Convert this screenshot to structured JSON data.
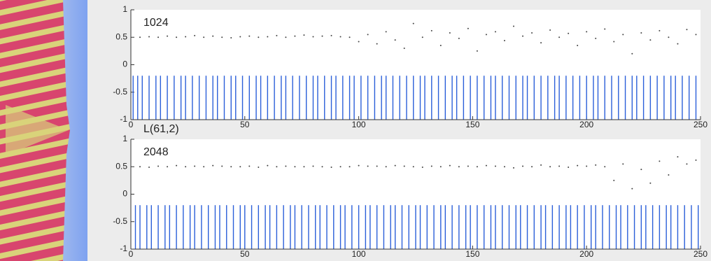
{
  "chart_data": [
    {
      "type": "scatter",
      "label": "1024",
      "annotation": "L(61,2)",
      "x": [
        4,
        8,
        12,
        16,
        20,
        24,
        28,
        32,
        36,
        40,
        44,
        48,
        52,
        56,
        60,
        64,
        68,
        72,
        76,
        80,
        84,
        88,
        92,
        96,
        100,
        104,
        108,
        112,
        116,
        120,
        124,
        128,
        132,
        136,
        140,
        144,
        148,
        152,
        156,
        160,
        164,
        168,
        172,
        176,
        180,
        184,
        188,
        192,
        196,
        200,
        204,
        208,
        212,
        216,
        220,
        224,
        228,
        232,
        236,
        240,
        244,
        248
      ],
      "values": [
        0.5,
        0.51,
        0.5,
        0.52,
        0.5,
        0.51,
        0.53,
        0.5,
        0.52,
        0.5,
        0.49,
        0.51,
        0.52,
        0.5,
        0.51,
        0.53,
        0.5,
        0.52,
        0.54,
        0.51,
        0.52,
        0.53,
        0.51,
        0.5,
        0.42,
        0.55,
        0.38,
        0.6,
        0.45,
        0.3,
        0.75,
        0.5,
        0.62,
        0.35,
        0.58,
        0.48,
        0.66,
        0.25,
        0.55,
        0.6,
        0.44,
        0.7,
        0.52,
        0.58,
        0.4,
        0.63,
        0.5,
        0.57,
        0.35,
        0.6,
        0.48,
        0.65,
        0.42,
        0.55,
        0.2,
        0.58,
        0.45,
        0.62,
        0.5,
        0.38,
        0.64,
        0.55
      ],
      "color": "#444444",
      "events": {
        "x": [
          1,
          3,
          5,
          8,
          11,
          13,
          16,
          19,
          22,
          24,
          27,
          30,
          33,
          36,
          38,
          41,
          44,
          46,
          49,
          52,
          55,
          57,
          60,
          63,
          66,
          68,
          71,
          74,
          77,
          80,
          82,
          85,
          88,
          90,
          93,
          96,
          98,
          101,
          104,
          107,
          110,
          112,
          115,
          118,
          121,
          124,
          127,
          129,
          132,
          135,
          138,
          141,
          143,
          146,
          149,
          152,
          155,
          158,
          160,
          163,
          166,
          169,
          172,
          174,
          177,
          180,
          183,
          186,
          188,
          191,
          194,
          197,
          200,
          203,
          205,
          208,
          211,
          214,
          217,
          220,
          222,
          225,
          228,
          231,
          234,
          237,
          239,
          242,
          245,
          248
        ],
        "top": -0.2,
        "color": "#2b5fd9"
      },
      "xlim": [
        0,
        250
      ],
      "ylim": [
        -1,
        1
      ],
      "xticks": [
        0,
        50,
        100,
        150,
        200,
        250
      ],
      "yticks": [
        1,
        0.5,
        0,
        -0.5,
        -1
      ]
    },
    {
      "type": "scatter",
      "label": "2048",
      "x": [
        4,
        8,
        12,
        16,
        20,
        24,
        28,
        32,
        36,
        40,
        44,
        48,
        52,
        56,
        60,
        64,
        68,
        72,
        76,
        80,
        84,
        88,
        92,
        96,
        100,
        104,
        108,
        112,
        116,
        120,
        124,
        128,
        132,
        136,
        140,
        144,
        148,
        152,
        156,
        160,
        164,
        168,
        172,
        176,
        180,
        184,
        188,
        192,
        196,
        200,
        204,
        208,
        212,
        216,
        220,
        224,
        228,
        232,
        236,
        240,
        244,
        248
      ],
      "values": [
        0.5,
        0.49,
        0.51,
        0.5,
        0.52,
        0.5,
        0.51,
        0.5,
        0.52,
        0.51,
        0.5,
        0.5,
        0.51,
        0.49,
        0.52,
        0.5,
        0.51,
        0.5,
        0.5,
        0.51,
        0.5,
        0.49,
        0.5,
        0.5,
        0.52,
        0.51,
        0.51,
        0.5,
        0.52,
        0.51,
        0.5,
        0.49,
        0.51,
        0.5,
        0.52,
        0.5,
        0.51,
        0.5,
        0.52,
        0.51,
        0.5,
        0.48,
        0.51,
        0.5,
        0.53,
        0.5,
        0.51,
        0.49,
        0.52,
        0.51,
        0.53,
        0.5,
        0.25,
        0.55,
        0.1,
        0.45,
        0.2,
        0.6,
        0.35,
        0.68,
        0.55,
        0.62
      ],
      "color": "#444444",
      "events": {
        "x": [
          2,
          4,
          7,
          9,
          12,
          15,
          17,
          20,
          23,
          26,
          28,
          31,
          34,
          37,
          39,
          42,
          45,
          48,
          50,
          53,
          56,
          59,
          61,
          64,
          67,
          70,
          72,
          75,
          78,
          81,
          83,
          86,
          89,
          92,
          94,
          97,
          100,
          103,
          105,
          108,
          111,
          114,
          116,
          119,
          122,
          125,
          127,
          130,
          133,
          136,
          138,
          141,
          144,
          147,
          149,
          152,
          155,
          158,
          160,
          163,
          166,
          169,
          171,
          174,
          177,
          180,
          182,
          185,
          188,
          191,
          193,
          196,
          199,
          202,
          204,
          207,
          210,
          213,
          215,
          218,
          221,
          224,
          226,
          229,
          232,
          235,
          237,
          240,
          243,
          246,
          249
        ],
        "top": -0.2,
        "color": "#2b5fd9"
      },
      "xlim": [
        0,
        250
      ],
      "ylim": [
        -1,
        1
      ],
      "xticks": [
        0,
        50,
        100,
        150,
        200,
        250
      ],
      "yticks": [
        1,
        0.5,
        0,
        -0.5,
        -1
      ]
    }
  ]
}
